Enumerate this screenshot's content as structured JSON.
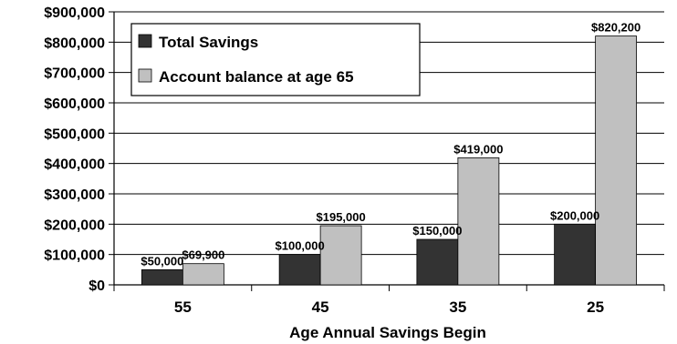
{
  "chart_data": {
    "type": "bar",
    "title": "",
    "xlabel": "Age Annual Savings Begin",
    "ylabel": "",
    "categories": [
      "55",
      "45",
      "35",
      "25"
    ],
    "series": [
      {
        "name": "Total Savings",
        "values": [
          50000,
          100000,
          150000,
          200000
        ],
        "labels": [
          "$50,000",
          "$100,000",
          "$150,000",
          "$200,000"
        ],
        "color": "#333333"
      },
      {
        "name": "Account balance at age 65",
        "values": [
          69900,
          195000,
          419000,
          820200
        ],
        "labels": [
          "$69,900",
          "$195,000",
          "$419,000",
          "$820,200"
        ],
        "color": "#c0c0c0"
      }
    ],
    "ylim": [
      0,
      900000
    ],
    "yticks": [
      0,
      100000,
      200000,
      300000,
      400000,
      500000,
      600000,
      700000,
      800000,
      900000
    ],
    "ytick_labels": [
      "$0",
      "$100,000",
      "$200,000",
      "$300,000",
      "$400,000",
      "$500,000",
      "$600,000",
      "$700,000",
      "$800,000",
      "$900,000"
    ],
    "grid": true,
    "legend_position": "top-left"
  }
}
